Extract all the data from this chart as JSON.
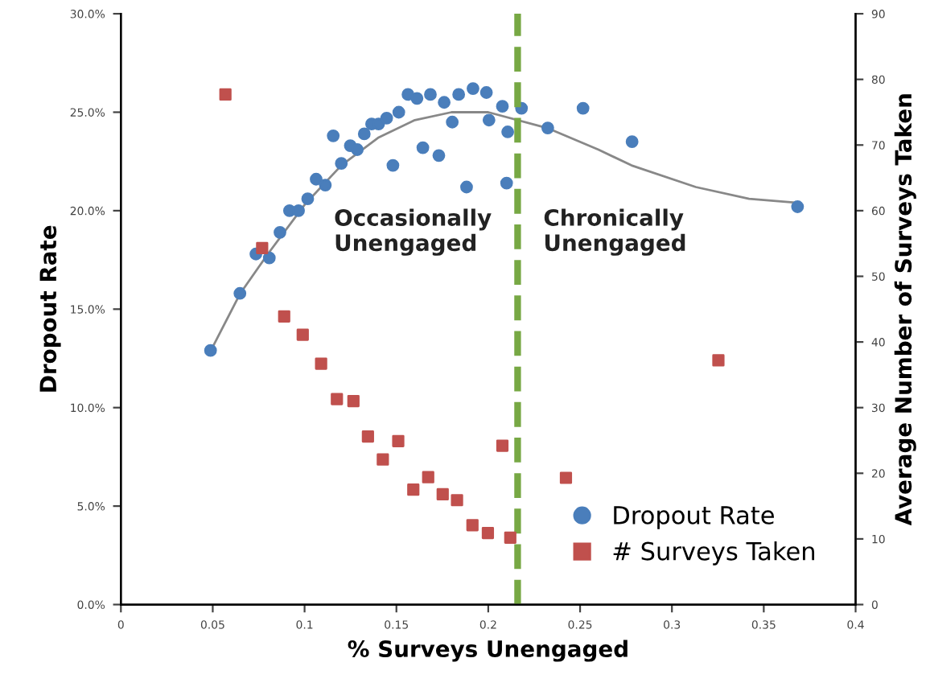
{
  "chart_data": {
    "type": "scatter",
    "xlabel": "% Surveys Unengaged",
    "ylabel": "Dropout Rate",
    "y2label": "Average Number of Surveys Taken",
    "xlim": [
      0,
      0.4
    ],
    "xticks": [
      0,
      0.05,
      0.1,
      0.15,
      0.2,
      0.25,
      0.3,
      0.35,
      0.4
    ],
    "ylim": [
      0,
      30
    ],
    "yticks": [
      {
        "value": 0,
        "label": "0.0%"
      },
      {
        "value": 5,
        "label": "5.0%"
      },
      {
        "value": 10,
        "label": "10.0%"
      },
      {
        "value": 15,
        "label": "15.0%"
      },
      {
        "value": 20,
        "label": "20.0%"
      },
      {
        "value": 25,
        "label": "25.0%"
      },
      {
        "value": 30,
        "label": "30.0%"
      }
    ],
    "y2lim": [
      0,
      90
    ],
    "y2ticks": [
      0,
      10,
      20,
      30,
      40,
      50,
      60,
      70,
      80,
      90
    ],
    "grid": false,
    "legend": "bottom right",
    "ref_lines": [
      {
        "axis": "x",
        "value": 0.216,
        "color": "#77a844",
        "line_style": "dashed"
      }
    ],
    "annotations": [
      "Occasionally\nUnengaged",
      "Chronically\nUnengaged"
    ],
    "series": [
      {
        "name": "Dropout Rate",
        "color": "#4a7ebb",
        "marker": "circle",
        "x": [
          0.0488,
          0.0648,
          0.0735,
          0.0808,
          0.0866,
          0.0918,
          0.0967,
          0.1017,
          0.1063,
          0.1113,
          0.1156,
          0.12,
          0.1249,
          0.1287,
          0.1325,
          0.1365,
          0.1403,
          0.1447,
          0.1481,
          0.1513,
          0.1563,
          0.1612,
          0.1644,
          0.1685,
          0.1731,
          0.176,
          0.1804,
          0.1839,
          0.1882,
          0.1917,
          0.199,
          0.2004,
          0.2077,
          0.21,
          0.2106,
          0.2181,
          0.2324,
          0.2516,
          0.2783,
          0.3684
        ],
        "values": [
          12.9,
          15.8,
          17.8,
          17.6,
          18.9,
          20.0,
          20.0,
          20.6,
          21.6,
          21.3,
          23.8,
          22.4,
          23.3,
          23.1,
          23.9,
          24.4,
          24.4,
          24.7,
          22.3,
          25.0,
          25.9,
          25.7,
          23.2,
          25.9,
          22.8,
          25.5,
          24.5,
          25.9,
          21.2,
          26.2,
          26.0,
          24.6,
          25.3,
          21.4,
          24.0,
          25.2,
          24.2,
          25.2,
          23.5,
          20.2
        ]
      },
      {
        "name": "# Surveys Taken",
        "color": "#c0504d",
        "marker": "square",
        "axis": "y2",
        "x": [
          0.0569,
          0.0769,
          0.0889,
          0.099,
          0.109,
          0.1176,
          0.1266,
          0.1345,
          0.1426,
          0.151,
          0.1592,
          0.1673,
          0.1752,
          0.183,
          0.1914,
          0.1998,
          0.2077,
          0.212,
          0.2423,
          0.3253
        ],
        "values": [
          77.7,
          54.3,
          43.9,
          41.1,
          36.7,
          31.3,
          31.0,
          25.6,
          22.1,
          24.9,
          17.5,
          19.4,
          16.8,
          15.9,
          12.1,
          10.9,
          24.2,
          10.2,
          19.3,
          37.2
        ]
      },
      {
        "type": "line",
        "color": "#888888",
        "marker": "none",
        "x": [
          0.049,
          0.065,
          0.08,
          0.1,
          0.12,
          0.14,
          0.16,
          0.18,
          0.2,
          0.232,
          0.26,
          0.278,
          0.313,
          0.342,
          0.368
        ],
        "values": [
          12.9,
          15.8,
          17.8,
          20.3,
          22.3,
          23.7,
          24.6,
          25.0,
          25.0,
          24.2,
          23.1,
          22.3,
          21.2,
          20.6,
          20.4
        ]
      }
    ]
  }
}
